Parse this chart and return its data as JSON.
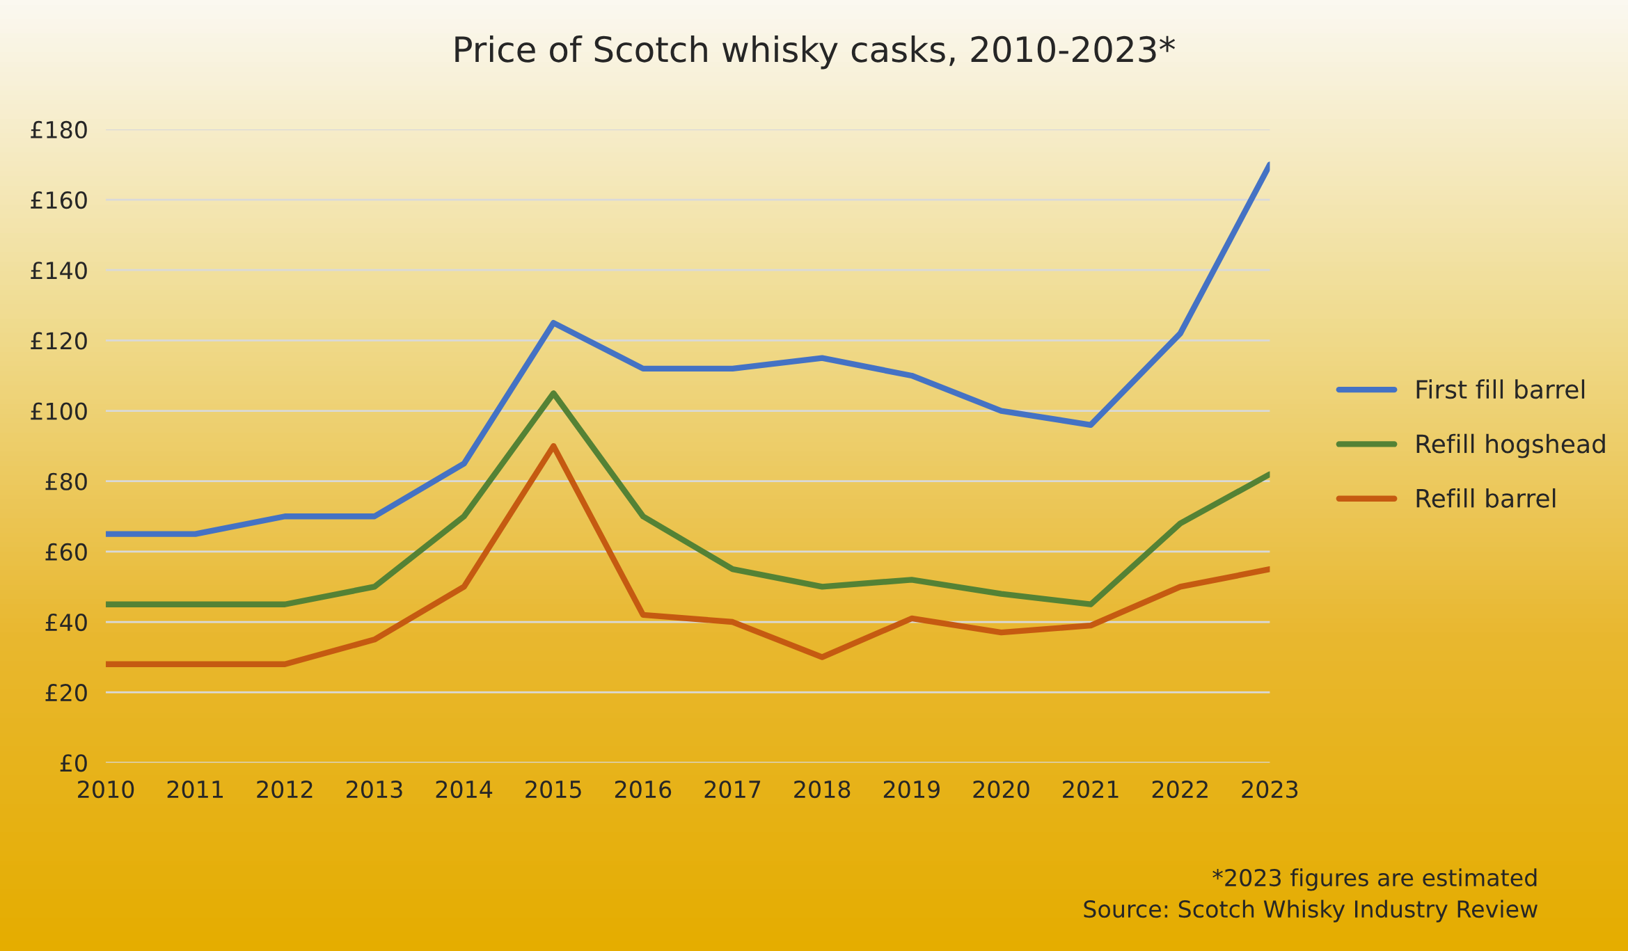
{
  "chart_data": {
    "type": "line",
    "title": "Price of Scotch whisky casks, 2010-2023*",
    "categories": [
      "2010",
      "2011",
      "2012",
      "2013",
      "2014",
      "2015",
      "2016",
      "2017",
      "2018",
      "2019",
      "2020",
      "2021",
      "2022",
      "2023"
    ],
    "series": [
      {
        "name": "First fill barrel",
        "color": "#4472c4",
        "values": [
          65,
          65,
          70,
          70,
          85,
          125,
          112,
          112,
          115,
          110,
          100,
          96,
          122,
          170
        ]
      },
      {
        "name": "Refill hogshead",
        "color": "#548235",
        "values": [
          45,
          45,
          45,
          50,
          70,
          105,
          70,
          55,
          50,
          52,
          48,
          45,
          68,
          82
        ]
      },
      {
        "name": "Refill barrel",
        "color": "#c55a11",
        "values": [
          28,
          28,
          28,
          35,
          50,
          90,
          42,
          40,
          30,
          41,
          37,
          39,
          50,
          55
        ]
      }
    ],
    "ylim": [
      0,
      180
    ],
    "yticks": [
      {
        "value": 0,
        "label": "£0"
      },
      {
        "value": 20,
        "label": "£20"
      },
      {
        "value": 40,
        "label": "£40"
      },
      {
        "value": 60,
        "label": "£60"
      },
      {
        "value": 80,
        "label": "£80"
      },
      {
        "value": 100,
        "label": "£100"
      },
      {
        "value": 120,
        "label": "£120"
      },
      {
        "value": 140,
        "label": "£140"
      },
      {
        "value": 160,
        "label": "£160"
      },
      {
        "value": 180,
        "label": "£180"
      }
    ],
    "grid": "y",
    "legend": "right",
    "marker": "none",
    "line_style": "solid",
    "annotations": [
      "*2023 figures are estimated",
      "Source: Scotch Whisky Industry Review"
    ]
  }
}
